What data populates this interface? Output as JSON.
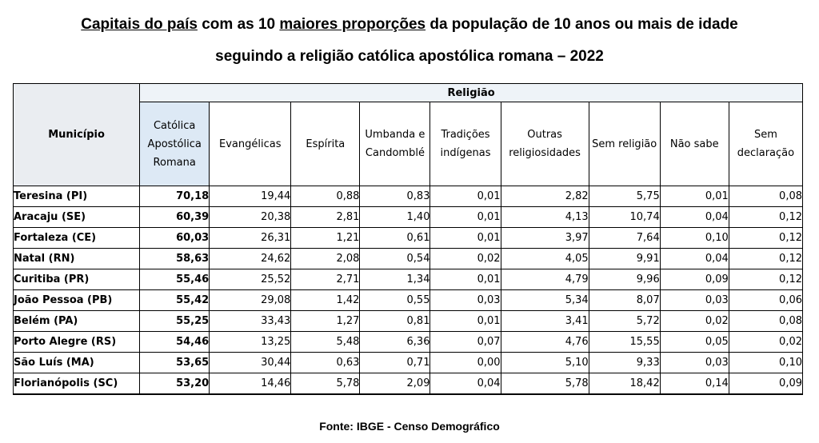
{
  "title": {
    "line1_part1": "Capitais do país",
    "line1_part2": " com as 10 ",
    "line1_part3": "maiores proporções",
    "line1_part4": " da população de 10 anos ou mais de idade",
    "line2": "seguindo a religião católica apostólica romana – 2022"
  },
  "table": {
    "group_header": "Religião",
    "row_header": "Município",
    "columns": [
      "Católica Apostólica Romana",
      "Evangélicas",
      "Espírita",
      "Umbanda e Candomblé",
      "Tradições indígenas",
      "Outras religiosidades",
      "Sem religião",
      "Não sabe",
      "Sem declaração"
    ],
    "rows": [
      {
        "city": "Teresina (PI)",
        "values": [
          "70,18",
          "19,44",
          "0,88",
          "0,83",
          "0,01",
          "2,82",
          "5,75",
          "0,01",
          "0,08"
        ]
      },
      {
        "city": "Aracaju (SE)",
        "values": [
          "60,39",
          "20,38",
          "2,81",
          "1,40",
          "0,01",
          "4,13",
          "10,74",
          "0,04",
          "0,12"
        ]
      },
      {
        "city": "Fortaleza (CE)",
        "values": [
          "60,03",
          "26,31",
          "1,21",
          "0,61",
          "0,01",
          "3,97",
          "7,64",
          "0,10",
          "0,12"
        ]
      },
      {
        "city": "Natal (RN)",
        "values": [
          "58,63",
          "24,62",
          "2,08",
          "0,54",
          "0,02",
          "4,05",
          "9,91",
          "0,04",
          "0,12"
        ]
      },
      {
        "city": "Curitiba (PR)",
        "values": [
          "55,46",
          "25,52",
          "2,71",
          "1,34",
          "0,01",
          "4,79",
          "9,96",
          "0,09",
          "0,12"
        ]
      },
      {
        "city": "João Pessoa (PB)",
        "values": [
          "55,42",
          "29,08",
          "1,42",
          "0,55",
          "0,03",
          "5,34",
          "8,07",
          "0,03",
          "0,06"
        ]
      },
      {
        "city": "Belém (PA)",
        "values": [
          "55,25",
          "33,43",
          "1,27",
          "0,81",
          "0,01",
          "3,41",
          "5,72",
          "0,02",
          "0,08"
        ]
      },
      {
        "city": "Porto Alegre (RS)",
        "values": [
          "54,46",
          "13,25",
          "5,48",
          "6,36",
          "0,07",
          "4,76",
          "15,55",
          "0,05",
          "0,02"
        ]
      },
      {
        "city": "São Luís (MA)",
        "values": [
          "53,65",
          "30,44",
          "0,63",
          "0,71",
          "0,00",
          "5,10",
          "9,33",
          "0,03",
          "0,10"
        ]
      },
      {
        "city": "Florianópolis (SC)",
        "values": [
          "53,20",
          "14,46",
          "5,78",
          "2,09",
          "0,04",
          "5,78",
          "18,42",
          "0,14",
          "0,09"
        ]
      }
    ]
  },
  "source": "Fonte: IBGE  - Censo Demográfico"
}
